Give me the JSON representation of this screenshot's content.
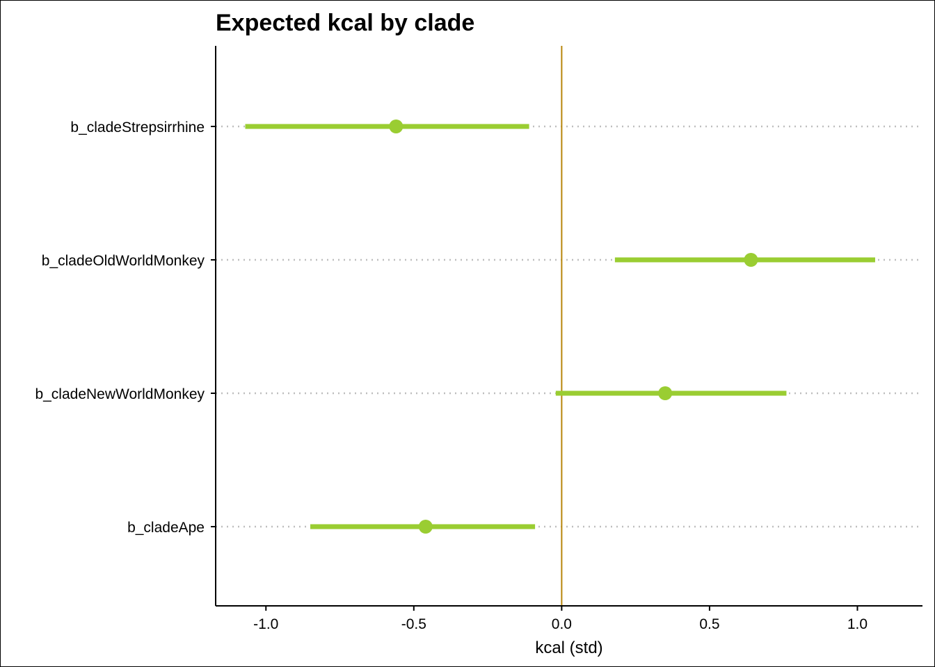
{
  "chart_data": {
    "type": "pointrange",
    "title": "Expected kcal by clade",
    "xlabel": "kcal (std)",
    "ylabel": "",
    "xlim": [
      -1.17,
      1.22
    ],
    "x_ticks": [
      -1.0,
      -0.5,
      0.0,
      0.5,
      1.0
    ],
    "x_tick_labels": [
      "-1.0",
      "-0.5",
      "0.0",
      "0.5",
      "1.0"
    ],
    "reference_line_x": 0,
    "grid": "dotted horizontal lines at each category",
    "legend": "none",
    "colors": {
      "point": "#9acd32",
      "interval": "#9acd32",
      "reference": "#b8860b",
      "grid": "#bebebe"
    },
    "categories": [
      "b_cladeStrepsirrhine",
      "b_cladeOldWorldMonkey",
      "b_cladeNewWorldMonkey",
      "b_cladeApe"
    ],
    "estimates": [
      -0.56,
      0.64,
      0.35,
      -0.46
    ],
    "lower": [
      -1.07,
      0.18,
      -0.02,
      -0.85
    ],
    "upper": [
      -0.11,
      1.06,
      0.76,
      -0.09
    ]
  }
}
